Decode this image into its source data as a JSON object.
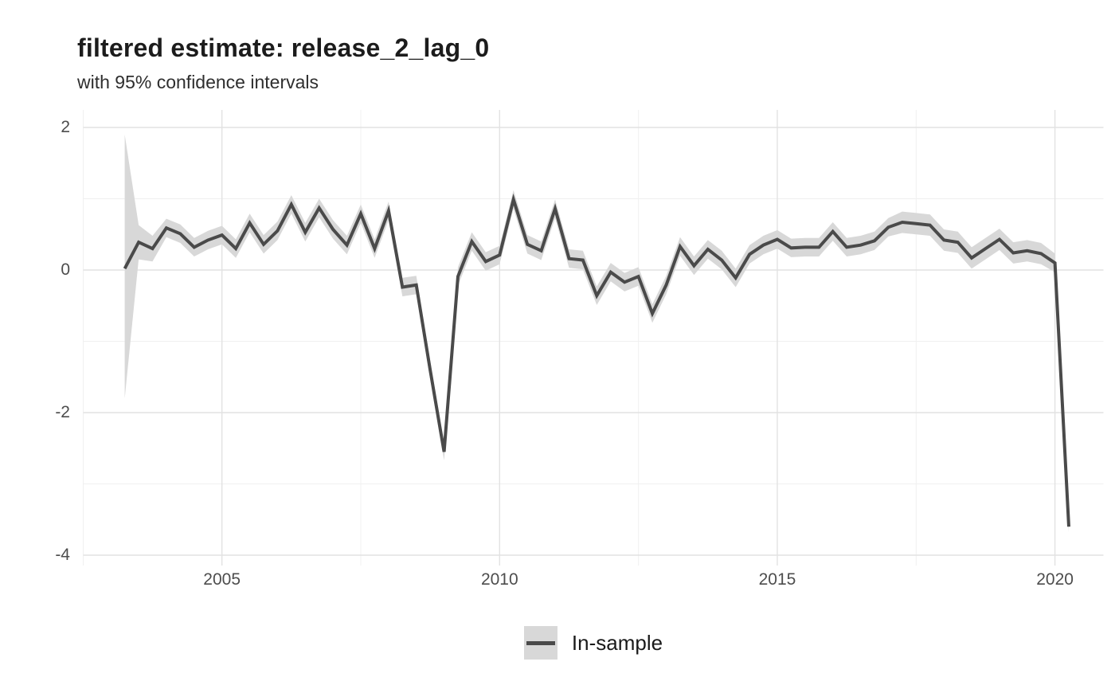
{
  "header": {
    "title": "filtered estimate: release_2_lag_0",
    "subtitle": "with 95% confidence intervals"
  },
  "legend": {
    "label": "In-sample"
  },
  "colors": {
    "line": "#4a4a4a",
    "ribbon": "#d8d8d8",
    "grid_major": "#e2e2e2",
    "grid_minor": "#f0f0f0",
    "axis_text": "#4d4d4d",
    "title_text": "#1c1c1c",
    "background": "#ffffff"
  },
  "chart_data": {
    "type": "line",
    "title": "filtered estimate: release_2_lag_0",
    "subtitle": "with 95% confidence intervals",
    "xlabel": "",
    "ylabel": "",
    "grid": true,
    "legend_position": "bottom",
    "xlim": [
      2002.45,
      2021.1
    ],
    "ylim": [
      -4.15,
      2.25
    ],
    "x_ticks": [
      2005,
      2010,
      2015,
      2020
    ],
    "x_tick_labels": [
      "2005",
      "2010",
      "2015",
      "2020"
    ],
    "x_minor_ticks": [
      2002.5,
      2007.5,
      2012.5,
      2017.5
    ],
    "y_ticks": [
      2,
      0,
      -2,
      -4
    ],
    "y_tick_labels": [
      "2",
      "0",
      "-2",
      "-4"
    ],
    "y_minor_ticks": [
      1,
      -1,
      -3
    ],
    "series": [
      {
        "name": "In-sample",
        "color": "#4a4a4a",
        "ribbon_color": "#d8d8d8",
        "x": [
          2003.25,
          2003.5,
          2003.75,
          2004,
          2004.25,
          2004.5,
          2004.75,
          2005,
          2005.25,
          2005.5,
          2005.75,
          2006,
          2006.25,
          2006.5,
          2006.75,
          2007,
          2007.25,
          2007.5,
          2007.75,
          2008,
          2008.25,
          2008.5,
          2008.75,
          2009,
          2009.25,
          2009.5,
          2009.75,
          2010,
          2010.25,
          2010.5,
          2010.75,
          2011,
          2011.25,
          2011.5,
          2011.75,
          2012,
          2012.25,
          2012.5,
          2012.75,
          2013,
          2013.25,
          2013.5,
          2013.75,
          2014,
          2014.25,
          2014.5,
          2014.75,
          2015,
          2015.25,
          2015.5,
          2015.75,
          2016,
          2016.25,
          2016.5,
          2016.75,
          2017,
          2017.25,
          2017.5,
          2017.75,
          2018,
          2018.25,
          2018.5,
          2018.75,
          2019,
          2019.25,
          2019.5,
          2019.75,
          2020,
          2020.25
        ],
        "y": [
          0.02,
          0.39,
          0.3,
          0.59,
          0.51,
          0.32,
          0.42,
          0.49,
          0.3,
          0.66,
          0.36,
          0.55,
          0.92,
          0.53,
          0.87,
          0.57,
          0.35,
          0.79,
          0.3,
          0.83,
          -0.24,
          -0.21,
          -1.4,
          -2.55,
          -0.09,
          0.4,
          0.12,
          0.21,
          0.99,
          0.36,
          0.27,
          0.86,
          0.16,
          0.14,
          -0.36,
          -0.03,
          -0.17,
          -0.09,
          -0.61,
          -0.21,
          0.33,
          0.06,
          0.29,
          0.14,
          -0.11,
          0.22,
          0.35,
          0.43,
          0.31,
          0.32,
          0.32,
          0.54,
          0.32,
          0.35,
          0.41,
          0.6,
          0.67,
          0.65,
          0.63,
          0.42,
          0.39,
          0.17,
          0.3,
          0.43,
          0.24,
          0.27,
          0.23,
          0.1,
          -3.6
        ],
        "ci_upper": [
          1.9,
          0.63,
          0.48,
          0.72,
          0.64,
          0.45,
          0.55,
          0.62,
          0.43,
          0.79,
          0.49,
          0.68,
          1.05,
          0.66,
          1.0,
          0.7,
          0.48,
          0.92,
          0.43,
          0.96,
          -0.11,
          -0.08,
          -1.27,
          -2.43,
          0.04,
          0.53,
          0.25,
          0.34,
          1.12,
          0.49,
          0.4,
          0.99,
          0.29,
          0.27,
          -0.23,
          0.1,
          -0.04,
          0.04,
          -0.48,
          -0.08,
          0.46,
          0.19,
          0.42,
          0.27,
          0.02,
          0.35,
          0.48,
          0.56,
          0.44,
          0.45,
          0.45,
          0.67,
          0.45,
          0.48,
          0.54,
          0.73,
          0.82,
          0.8,
          0.78,
          0.57,
          0.54,
          0.32,
          0.45,
          0.58,
          0.39,
          0.42,
          0.38,
          0.23,
          -3.52
        ],
        "ci_lower": [
          -1.8,
          0.15,
          0.12,
          0.46,
          0.38,
          0.19,
          0.29,
          0.36,
          0.17,
          0.53,
          0.23,
          0.42,
          0.79,
          0.4,
          0.74,
          0.44,
          0.22,
          0.66,
          0.17,
          0.7,
          -0.37,
          -0.34,
          -1.53,
          -2.67,
          -0.22,
          0.27,
          -0.01,
          0.08,
          0.86,
          0.23,
          0.14,
          0.73,
          0.03,
          0.01,
          -0.49,
          -0.16,
          -0.3,
          -0.22,
          -0.74,
          -0.34,
          0.2,
          -0.07,
          0.16,
          0.01,
          -0.24,
          0.09,
          0.22,
          0.3,
          0.18,
          0.19,
          0.19,
          0.41,
          0.19,
          0.22,
          0.28,
          0.47,
          0.52,
          0.5,
          0.48,
          0.27,
          0.24,
          0.02,
          0.15,
          0.28,
          0.09,
          0.12,
          0.08,
          -0.03,
          -3.68
        ]
      }
    ]
  }
}
